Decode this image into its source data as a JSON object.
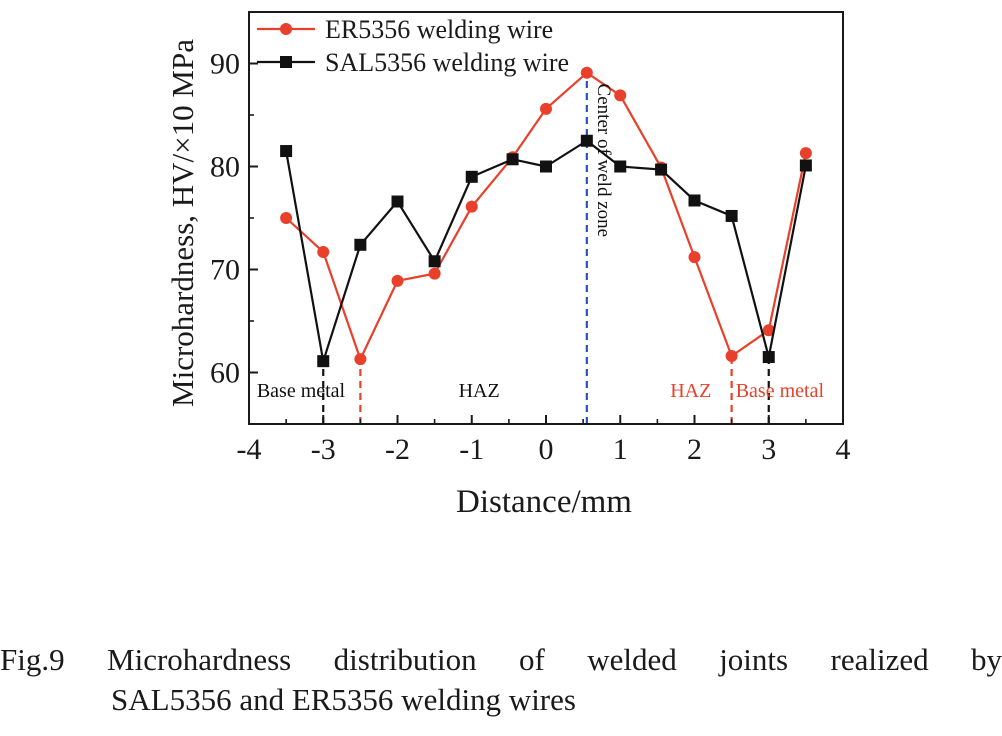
{
  "chart_data": {
    "type": "line",
    "xlabel": "Distance/mm",
    "ylabel": "Microhardness, HV/×10 MPa",
    "xlim": [
      -4,
      4
    ],
    "ylim": [
      55,
      95
    ],
    "xticks": [
      "-4",
      "-3",
      "-2",
      "-1",
      "0",
      "1",
      "2",
      "3",
      "4"
    ],
    "yticks": [
      "60",
      "70",
      "80",
      "90"
    ],
    "legend_position": "top-left",
    "series": [
      {
        "name": "ER5356 welding wire",
        "color": "#e8402a",
        "marker": "circle",
        "x": [
          -3.5,
          -3.0,
          -2.5,
          -2.0,
          -1.5,
          -1.0,
          -0.45,
          0.0,
          0.55,
          1.0,
          1.55,
          2.0,
          2.5,
          3.0,
          3.5
        ],
        "y": [
          75.0,
          71.7,
          61.3,
          68.9,
          69.6,
          76.1,
          80.9,
          85.6,
          89.1,
          86.9,
          79.9,
          71.2,
          61.6,
          64.1,
          81.3
        ]
      },
      {
        "name": "SAL5356 welding wire",
        "color": "#111111",
        "marker": "square",
        "x": [
          -3.5,
          -3.0,
          -2.5,
          -2.0,
          -1.5,
          -1.0,
          -0.45,
          0.0,
          0.55,
          1.0,
          1.55,
          2.0,
          2.5,
          3.0,
          3.5
        ],
        "y": [
          81.5,
          61.1,
          72.4,
          76.6,
          70.8,
          79.0,
          80.7,
          80.0,
          82.5,
          80.0,
          79.7,
          76.7,
          75.2,
          61.5,
          80.1
        ]
      }
    ],
    "reference_lines": [
      {
        "x": -3.0,
        "y_to": 61.1,
        "color": "#111111"
      },
      {
        "x": -2.5,
        "y_to": 61.3,
        "color": "#e8402a"
      },
      {
        "x": 0.55,
        "y_to": 89.1,
        "color": "#2b4fc7"
      },
      {
        "x": 2.5,
        "y_to": 61.6,
        "color": "#e8402a"
      },
      {
        "x": 3.0,
        "y_to": 61.5,
        "color": "#111111"
      }
    ],
    "annotations": [
      {
        "text": "Base metal",
        "x": -3.3,
        "y": 57.6,
        "color": "#111111",
        "rotated": false
      },
      {
        "text": "HAZ",
        "x": -0.9,
        "y": 57.6,
        "color": "#111111",
        "rotated": false
      },
      {
        "text": "HAZ",
        "x": 1.95,
        "y": 57.6,
        "color": "#e8402a",
        "rotated": false
      },
      {
        "text": "Base metal",
        "x": 3.15,
        "y": 57.6,
        "color": "#e8402a",
        "rotated": false
      },
      {
        "text": "Center of weld zone",
        "x": 0.7,
        "y": 80.6,
        "color": "#111111",
        "rotated": true
      }
    ]
  },
  "caption": {
    "label": "Fig.9",
    "line1_words": [
      "Microhardness",
      "distribution",
      "of",
      "welded",
      "joints",
      "realized",
      "by"
    ],
    "line2": "SAL5356 and ER5356 welding wires"
  }
}
